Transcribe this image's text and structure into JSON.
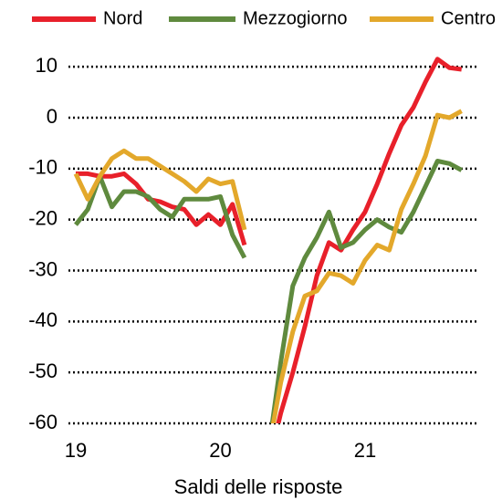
{
  "chart_data": {
    "type": "line",
    "xlabel": "Saldi delle risposte",
    "categories": [
      "19",
      null,
      null,
      null,
      null,
      null,
      null,
      null,
      null,
      null,
      null,
      null,
      "20",
      null,
      null,
      null,
      null,
      null,
      null,
      null,
      null,
      null,
      null,
      null,
      "21",
      null,
      null,
      null,
      null,
      null,
      null,
      null,
      null
    ],
    "series": [
      {
        "name": "Nord",
        "color": "#e8202a",
        "values": [
          -11,
          -11,
          -11.5,
          -11.5,
          -11,
          -13,
          -16,
          -16.5,
          -17.5,
          -18,
          -21,
          -19,
          -21,
          -17,
          -25,
          null,
          -68,
          -58,
          -50,
          -41,
          -31,
          -24.5,
          -26,
          -22,
          -18.5,
          -13,
          -7,
          -1.5,
          2,
          7,
          11.5,
          9.8,
          9.5
        ]
      },
      {
        "name": "Mezzogiorno",
        "color": "#5f8a3e",
        "values": [
          -21,
          -18,
          -11.5,
          -17.5,
          -14.5,
          -14.5,
          -15.5,
          -18,
          -19.5,
          -16,
          -16,
          -16,
          -15.5,
          -23,
          -27.5,
          null,
          -65,
          -48,
          -33,
          -27.5,
          -23.5,
          -18.5,
          -25.5,
          -24.5,
          -22,
          -20,
          -21.5,
          -22.5,
          -18.5,
          -13.5,
          -8.5,
          -9,
          -10.3
        ]
      },
      {
        "name": "Centro",
        "color": "#e3a82b",
        "values": [
          -11,
          -16,
          -11.5,
          -8,
          -6.5,
          -8,
          -8,
          -9.5,
          -11,
          -12.5,
          -14.5,
          -12,
          -13,
          -12.5,
          -22,
          null,
          -65,
          -52,
          -42,
          -35,
          -34,
          -30.5,
          -31,
          -32.5,
          -28,
          -25,
          -26,
          -18,
          -13,
          -7.5,
          0.5,
          0,
          1.3
        ]
      }
    ],
    "ylim": [
      -60,
      12
    ],
    "yticks": [
      10,
      0,
      -10,
      -20,
      -30,
      -40,
      -50,
      -60
    ],
    "grid": true
  }
}
